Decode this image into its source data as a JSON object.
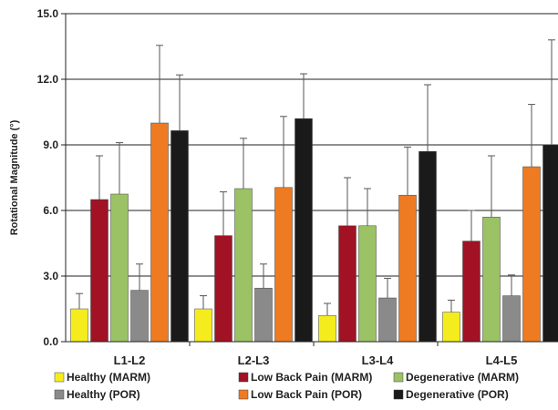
{
  "chart_data": {
    "type": "bar",
    "ylabel": "Rotational Magnitude (°)",
    "ylim": [
      0,
      15
    ],
    "yticks": [
      "0.0",
      "3.0",
      "6.0",
      "9.0",
      "12.0",
      "15.0"
    ],
    "grid": true,
    "legend_position": "bottom",
    "categories": [
      "L1-L2",
      "L2-L3",
      "L3-L4",
      "L4-L5"
    ],
    "series": [
      {
        "name": "Healthy (MARM)",
        "color": "#f5ec1e",
        "values": [
          1.5,
          1.5,
          1.2,
          1.35
        ],
        "errors": [
          0.7,
          0.6,
          0.55,
          0.55
        ]
      },
      {
        "name": "Low Back Pain (MARM)",
        "color": "#a01224",
        "values": [
          6.5,
          4.85,
          5.3,
          4.6
        ],
        "errors": [
          2.0,
          2.0,
          2.2,
          1.4
        ]
      },
      {
        "name": "Degenerative (MARM)",
        "color": "#9bc265",
        "values": [
          6.75,
          7.0,
          5.3,
          5.7
        ],
        "errors": [
          2.35,
          2.3,
          1.7,
          2.8
        ]
      },
      {
        "name": "Healthy (POR)",
        "color": "#8a8a8a",
        "values": [
          2.35,
          2.45,
          2.0,
          2.1
        ],
        "errors": [
          1.2,
          1.1,
          0.9,
          0.95
        ]
      },
      {
        "name": "Low Back Pain (POR)",
        "color": "#ee7a22",
        "values": [
          10.0,
          7.05,
          6.7,
          8.0
        ],
        "errors": [
          3.55,
          3.25,
          2.2,
          2.85
        ]
      },
      {
        "name": "Degenerative (POR)",
        "color": "#1a1a1a",
        "values": [
          9.65,
          10.2,
          8.7,
          9.0
        ],
        "errors": [
          2.55,
          2.05,
          3.05,
          4.8
        ]
      }
    ]
  }
}
